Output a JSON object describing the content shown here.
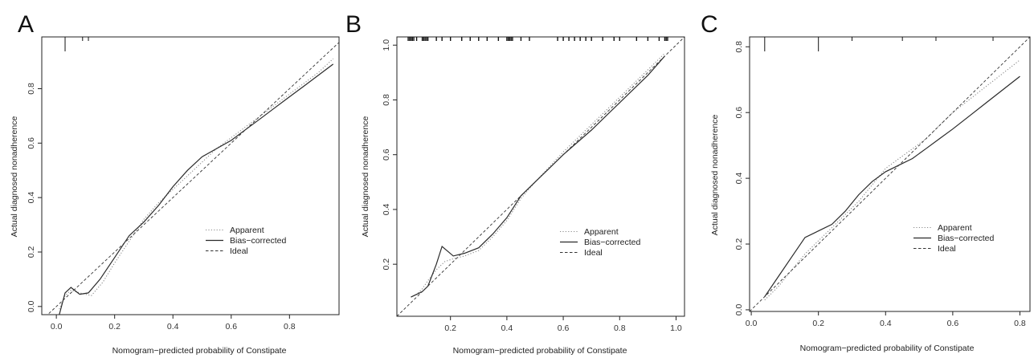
{
  "chart_data": [
    {
      "panel_label": "A",
      "type": "line",
      "xlabel": "Nomogram−predicted probability of Constipate",
      "ylabel": "Actual diagnosed nonadherence",
      "xlim": [
        -0.05,
        0.97
      ],
      "ylim": [
        -0.03,
        0.99
      ],
      "xticks": [
        0.0,
        0.2,
        0.4,
        0.6,
        0.8
      ],
      "xtick_labels": [
        "0.0",
        "0.2",
        "0.4",
        "0.6",
        "0.8"
      ],
      "yticks": [
        0.0,
        0.2,
        0.4,
        0.6,
        0.8
      ],
      "ytick_labels": [
        "0.0",
        "0.2",
        "0.4",
        "0.6",
        "0.8"
      ],
      "legend": {
        "position": "bottom-right",
        "entries": [
          "Apparent",
          "Bias−corrected",
          "Ideal"
        ]
      },
      "rug": [
        0.03,
        0.09,
        0.11
      ],
      "rug_long": [
        0.03
      ],
      "series": [
        {
          "name": "Apparent",
          "style": "dotted",
          "x": [
            0.01,
            0.03,
            0.05,
            0.08,
            0.12,
            0.16,
            0.2,
            0.25,
            0.3,
            0.35,
            0.4,
            0.45,
            0.5,
            0.55,
            0.6,
            0.65,
            0.7,
            0.75,
            0.8,
            0.85,
            0.9,
            0.95
          ],
          "y": [
            -0.01,
            0.04,
            0.06,
            0.05,
            0.04,
            0.09,
            0.16,
            0.24,
            0.32,
            0.38,
            0.43,
            0.48,
            0.53,
            0.58,
            0.62,
            0.66,
            0.7,
            0.74,
            0.78,
            0.82,
            0.86,
            0.91
          ]
        },
        {
          "name": "Bias−corrected",
          "style": "solid",
          "x": [
            0.01,
            0.03,
            0.05,
            0.08,
            0.11,
            0.15,
            0.2,
            0.25,
            0.3,
            0.35,
            0.4,
            0.45,
            0.5,
            0.55,
            0.6,
            0.65,
            0.7,
            0.75,
            0.8,
            0.85,
            0.9,
            0.95
          ],
          "y": [
            -0.03,
            0.05,
            0.07,
            0.045,
            0.05,
            0.1,
            0.18,
            0.26,
            0.31,
            0.37,
            0.44,
            0.5,
            0.55,
            0.58,
            0.61,
            0.65,
            0.69,
            0.73,
            0.77,
            0.81,
            0.85,
            0.89
          ]
        },
        {
          "name": "Ideal",
          "style": "dashed",
          "x": [
            -0.05,
            0.97
          ],
          "y": [
            -0.05,
            0.97
          ]
        }
      ]
    },
    {
      "panel_label": "B",
      "type": "line",
      "xlabel": "Nomogram−predicted probability of Constipate",
      "ylabel": "Actual diagnosed nonadherence",
      "xlim": [
        0.01,
        1.03
      ],
      "ylim": [
        0.01,
        1.03
      ],
      "xticks": [
        0.2,
        0.4,
        0.6,
        0.8,
        1.0
      ],
      "xtick_labels": [
        "0.2",
        "0.4",
        "0.6",
        "0.8",
        "1.0"
      ],
      "yticks": [
        0.2,
        0.4,
        0.6,
        0.8,
        1.0
      ],
      "ytick_labels": [
        "0.2",
        "0.4",
        "0.6",
        "0.8",
        "1.0"
      ],
      "legend": {
        "position": "bottom-right",
        "entries": [
          "Apparent",
          "Bias−corrected",
          "Ideal"
        ]
      },
      "rug": [
        0.05,
        0.055,
        0.06,
        0.065,
        0.07,
        0.08,
        0.1,
        0.105,
        0.11,
        0.115,
        0.12,
        0.15,
        0.17,
        0.2,
        0.24,
        0.27,
        0.3,
        0.33,
        0.37,
        0.4,
        0.405,
        0.41,
        0.415,
        0.42,
        0.45,
        0.48,
        0.58,
        0.6,
        0.62,
        0.64,
        0.66,
        0.68,
        0.7,
        0.74,
        0.78,
        0.8,
        0.86,
        0.9,
        0.94,
        0.96,
        0.965,
        0.97
      ],
      "rug_long": [],
      "series": [
        {
          "name": "Apparent",
          "style": "dotted",
          "x": [
            0.06,
            0.08,
            0.1,
            0.12,
            0.15,
            0.18,
            0.21,
            0.25,
            0.3,
            0.35,
            0.4,
            0.45,
            0.5,
            0.6,
            0.7,
            0.8,
            0.9,
            0.96
          ],
          "y": [
            0.08,
            0.09,
            0.11,
            0.14,
            0.18,
            0.21,
            0.22,
            0.23,
            0.25,
            0.3,
            0.36,
            0.44,
            0.5,
            0.61,
            0.71,
            0.81,
            0.91,
            0.97
          ]
        },
        {
          "name": "Bias−corrected",
          "style": "solid",
          "x": [
            0.06,
            0.08,
            0.1,
            0.12,
            0.15,
            0.17,
            0.21,
            0.25,
            0.3,
            0.35,
            0.4,
            0.45,
            0.5,
            0.6,
            0.7,
            0.8,
            0.9,
            0.96
          ],
          "y": [
            0.08,
            0.09,
            0.1,
            0.12,
            0.2,
            0.265,
            0.23,
            0.24,
            0.26,
            0.31,
            0.37,
            0.45,
            0.5,
            0.6,
            0.69,
            0.79,
            0.89,
            0.96
          ]
        },
        {
          "name": "Ideal",
          "style": "dashed",
          "x": [
            0.01,
            1.03
          ],
          "y": [
            0.01,
            1.03
          ]
        }
      ]
    },
    {
      "panel_label": "C",
      "type": "line",
      "xlabel": "Nomogram−predicted probability of Constipate",
      "ylabel": "Actual diagnosed nonadherence",
      "xlim": [
        -0.005,
        0.83
      ],
      "ylim": [
        -0.005,
        0.83
      ],
      "xticks": [
        0.0,
        0.2,
        0.4,
        0.6,
        0.8
      ],
      "xtick_labels": [
        "0.0",
        "0.2",
        "0.4",
        "0.6",
        "0.8"
      ],
      "yticks": [
        0.0,
        0.2,
        0.4,
        0.6,
        0.8
      ],
      "ytick_labels": [
        "0.0",
        "0.2",
        "0.4",
        "0.6",
        "0.8"
      ],
      "legend": {
        "position": "bottom-right",
        "entries": [
          "Apparent",
          "Bias−corrected",
          "Ideal"
        ]
      },
      "rug": [
        0.04,
        0.2,
        0.3,
        0.45,
        0.55,
        0.72
      ],
      "rug_long": [
        0.04,
        0.2
      ],
      "series": [
        {
          "name": "Apparent",
          "style": "dotted",
          "x": [
            0.04,
            0.08,
            0.12,
            0.16,
            0.2,
            0.24,
            0.28,
            0.32,
            0.36,
            0.4,
            0.44,
            0.48,
            0.52,
            0.56,
            0.6,
            0.65,
            0.7,
            0.75,
            0.8
          ],
          "y": [
            0.03,
            0.07,
            0.12,
            0.17,
            0.21,
            0.25,
            0.29,
            0.33,
            0.38,
            0.43,
            0.46,
            0.49,
            0.52,
            0.56,
            0.6,
            0.64,
            0.68,
            0.72,
            0.76
          ]
        },
        {
          "name": "Bias−corrected",
          "style": "solid",
          "x": [
            0.04,
            0.08,
            0.12,
            0.16,
            0.2,
            0.24,
            0.28,
            0.32,
            0.36,
            0.4,
            0.44,
            0.48,
            0.52,
            0.56,
            0.6,
            0.65,
            0.7,
            0.75,
            0.8
          ],
          "y": [
            0.04,
            0.1,
            0.16,
            0.22,
            0.24,
            0.26,
            0.3,
            0.35,
            0.39,
            0.42,
            0.44,
            0.46,
            0.49,
            0.52,
            0.55,
            0.59,
            0.63,
            0.67,
            0.71
          ]
        },
        {
          "name": "Ideal",
          "style": "dashed",
          "x": [
            -0.005,
            0.83
          ],
          "y": [
            -0.005,
            0.83
          ]
        }
      ]
    }
  ]
}
